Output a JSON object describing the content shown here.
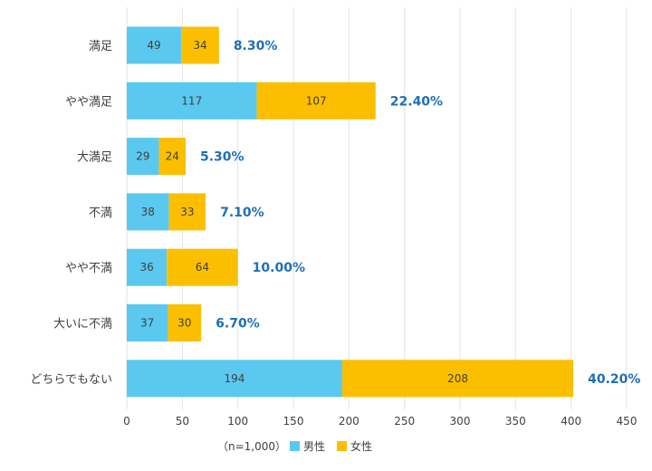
{
  "chart_data": {
    "type": "bar",
    "orientation": "horizontal",
    "stacked": true,
    "categories": [
      "満足",
      "やや満足",
      "大満足",
      "不満",
      "やや不満",
      "大いに不満",
      "どちらでもない"
    ],
    "series": [
      {
        "name": "男性",
        "values": [
          49,
          117,
          29,
          38,
          36,
          37,
          194
        ],
        "color": "#5bc8ef"
      },
      {
        "name": "女性",
        "values": [
          34,
          107,
          24,
          33,
          64,
          30,
          208
        ],
        "color": "#fbbf00"
      }
    ],
    "percent_labels": [
      "8.30%",
      "22.40%",
      "5.30%",
      "7.10%",
      "10.00%",
      "6.70%",
      "40.20%"
    ],
    "xlim": [
      0,
      450
    ],
    "xticks": [
      0,
      50,
      100,
      150,
      200,
      250,
      300,
      350,
      400,
      450
    ],
    "grid": true,
    "legend": {
      "note": "（n=1,000）",
      "placement": "bottom"
    },
    "colors": {
      "grid": "#e3e3e3",
      "percent": "#1f6fb5",
      "text": "#404040"
    }
  }
}
